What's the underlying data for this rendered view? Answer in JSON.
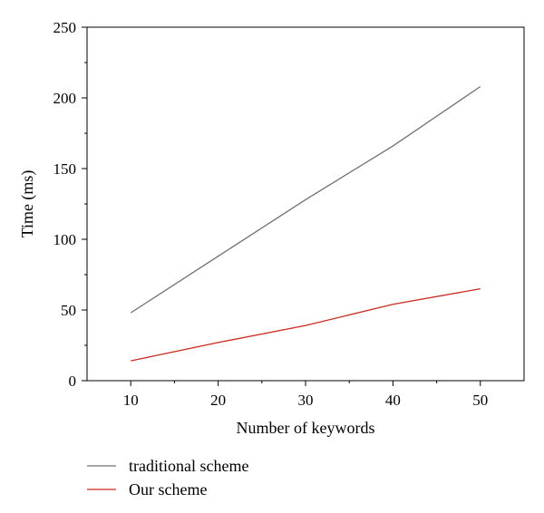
{
  "chart_data": {
    "type": "line",
    "x": [
      10,
      20,
      30,
      40,
      50
    ],
    "series": [
      {
        "name": "traditional scheme",
        "values": [
          48,
          88,
          128,
          166,
          208
        ],
        "color": "#707070"
      },
      {
        "name": "Our scheme",
        "values": [
          14,
          27,
          39,
          54,
          65
        ],
        "color": "#cc2a1e"
      }
    ],
    "xlabel": "Number of keywords",
    "ylabel": "Time (ms)",
    "xlim": [
      5,
      55
    ],
    "ylim": [
      0,
      250
    ],
    "xticks": [
      10,
      20,
      30,
      40,
      50
    ],
    "yticks": [
      0,
      50,
      100,
      150,
      200,
      250
    ],
    "grid": false,
    "legend_position": "bottom-left"
  }
}
